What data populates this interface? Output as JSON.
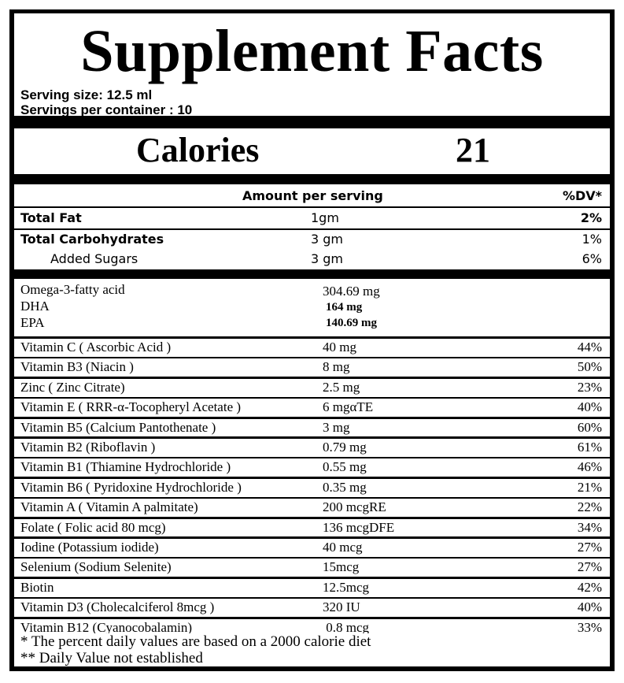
{
  "header": {
    "title": "Supplement Facts",
    "serving_size": "Serving size:   12.5 ml",
    "servings_per_container": "Servings per container : 10"
  },
  "calories": {
    "label": "Calories",
    "value": "21"
  },
  "macros": {
    "header": {
      "amount_label": "Amount per serving",
      "dv_label": "%DV*"
    },
    "rows": [
      {
        "name": "Total Fat",
        "amount": "1gm",
        "dv": "2%"
      },
      {
        "name": "Total Carbohydrates",
        "amount": "3 gm",
        "dv": "1%"
      },
      {
        "name": "Added Sugars",
        "amount": "3 gm",
        "dv": "6%"
      }
    ]
  },
  "omega": {
    "name": "Omega-3-fatty acid",
    "amount": "304.69 mg",
    "sub": [
      {
        "name": "DHA",
        "amount": "164  mg"
      },
      {
        "name": "EPA",
        "amount": "140.69  mg"
      }
    ]
  },
  "nutrients": [
    {
      "name": "Vitamin C ( Ascorbic Acid )",
      "amount": "40 mg",
      "dv": "44%"
    },
    {
      "name": "Vitamin B3   (Niacin )",
      "amount": "8 mg",
      "dv": "50%"
    },
    {
      "name": "Zinc ( Zinc Citrate)",
      "amount": "2.5 mg",
      "dv": "23%"
    },
    {
      "name": "Vitamin E ( RRR-α-Tocopheryl Acetate )",
      "amount": "6 mgαTE",
      "dv": "40%"
    },
    {
      "name": "Vitamin B5  (Calcium Pantothenate )",
      "amount": "3 mg",
      "dv": "60%"
    },
    {
      "name": "Vitamin B2  (Riboflavin )",
      "amount": "0.79 mg",
      "dv": "61%"
    },
    {
      "name": "Vitamin B1  (Thiamine Hydrochloride )",
      "amount": "0.55 mg",
      "dv": "46%"
    },
    {
      "name": "Vitamin B6 ( Pyridoxine Hydrochloride )",
      "amount": "0.35 mg",
      "dv": "21%"
    },
    {
      "name": "Vitamin A ( Vitamin A palmitate)",
      "amount": "200 mcgRE",
      "dv": "22%"
    },
    {
      "name": "Folate ( Folic acid 80 mcg)",
      "amount": "136 mcgDFE",
      "dv": "34%"
    },
    {
      "name": "Iodine  (Potassium iodide)",
      "amount": "40 mcg",
      "dv": "27%"
    },
    {
      "name": "Selenium  (Sodium Selenite)",
      "amount": "15mcg",
      "dv": "27%"
    },
    {
      "name": "Biotin",
      "amount": "12.5mcg",
      "dv": "42%"
    },
    {
      "name": "Vitamin D3  (Cholecalciferol  8mcg )",
      "amount": "320 IU",
      "dv": "40%"
    },
    {
      "name": "Vitamin B12  (Cyanocobalamin)",
      "amount": " 0.8 mcg",
      "dv": "33%"
    }
  ],
  "footnotes": {
    "line1": "*  The percent daily values are based on a 2000 calorie diet",
    "line2": "** Daily Value not established"
  }
}
